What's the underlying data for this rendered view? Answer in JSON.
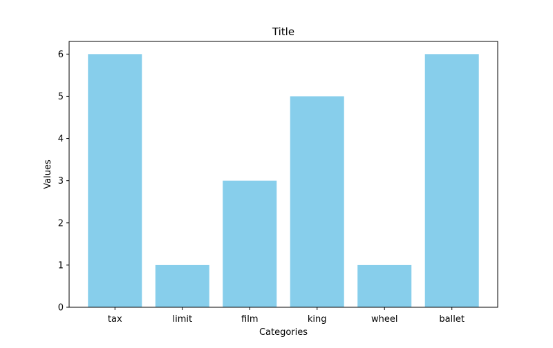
{
  "chart_data": {
    "type": "bar",
    "title": "Title",
    "xlabel": "Categories",
    "ylabel": "Values",
    "categories": [
      "tax",
      "limit",
      "film",
      "king",
      "wheel",
      "ballet"
    ],
    "values": [
      6,
      1,
      3,
      5,
      1,
      6
    ],
    "ylim": [
      0,
      6.3
    ],
    "yticks": [
      0,
      1,
      2,
      3,
      4,
      5,
      6
    ],
    "bar_color": "#87ceeb",
    "grid": false,
    "legend": false
  }
}
